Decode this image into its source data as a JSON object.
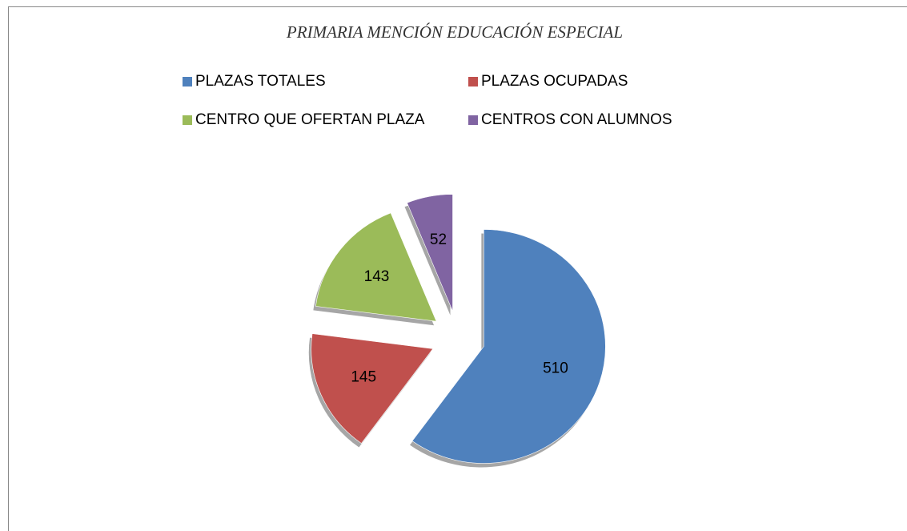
{
  "chart_data": {
    "type": "pie",
    "title": "PRIMARIA MENCIÓN EDUCACIÓN ESPECIAL",
    "categories": [
      "PLAZAS TOTALES",
      "PLAZAS OCUPADAS",
      "CENTRO QUE OFERTAN PLAZA",
      "CENTROS CON ALUMNOS"
    ],
    "values": [
      510,
      145,
      143,
      52
    ],
    "colors": [
      "#4f81bd",
      "#c0504d",
      "#9bbb59",
      "#8064a2"
    ],
    "legend": "top"
  }
}
